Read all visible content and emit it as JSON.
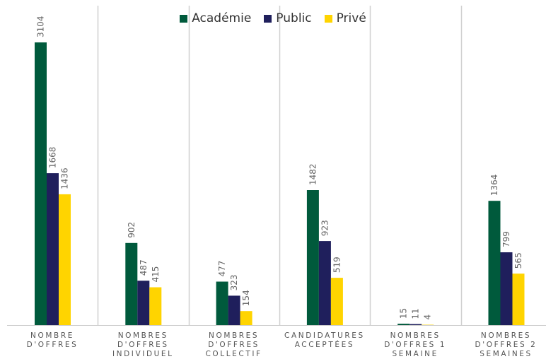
{
  "chart_data": {
    "type": "bar",
    "categories": [
      "NOMBRE\nD'OFFRES",
      "NOMBRES\nD'OFFRES\nINDIVIDUEL",
      "NOMBRES\nD'OFFRES\nCOLLECTIF",
      "CANDIDATURES\nACCEPTÉES",
      "NOMBRES\nD'OFFRES 1\nSEMAINE",
      "NOMBRES\nD'OFFRES 2\nSEMAINES"
    ],
    "series": [
      {
        "name": "Académie",
        "color": "#005a3c",
        "values": [
          3104,
          902,
          477,
          1482,
          15,
          1364
        ]
      },
      {
        "name": "Public",
        "color": "#1f1f5c",
        "values": [
          1668,
          487,
          323,
          923,
          11,
          799
        ]
      },
      {
        "name": "Privé",
        "color": "#ffd400",
        "values": [
          1436,
          415,
          154,
          519,
          4,
          565
        ]
      }
    ],
    "ylim": [
      0,
      3104
    ],
    "grid": "vertical separators",
    "legend_position": "top"
  }
}
